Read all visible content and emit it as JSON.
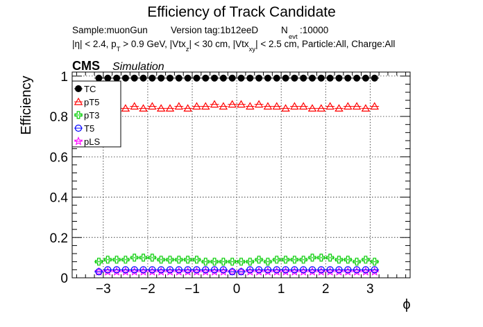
{
  "chart_data": {
    "type": "scatter",
    "title": "Efficiency of Track Candidate",
    "subtitle_line1": {
      "sample": "Sample:muonGun",
      "version": "Version tag:1b12eeD",
      "nevt_prefix": "N",
      "nevt_sub": "evt",
      "nevt_value": ":10000"
    },
    "subtitle_line2": {
      "p1": "|η| < 2.4, p",
      "s1": "T",
      "p2": " > 0.9 GeV, |Vtx",
      "s2": "z",
      "p3": "| < 30 cm, |Vtx",
      "s3": "xy",
      "p4": "| < 2.5 cm, Particle:All, Charge:All"
    },
    "cms_label": "CMS",
    "simulation_label": "Simulation",
    "xlabel": "ϕ",
    "ylabel": "Efficiency",
    "xlim": [
      -3.7,
      3.9
    ],
    "ylim": [
      0,
      1.02
    ],
    "xticks": [
      -3,
      -2,
      -1,
      0,
      1,
      2,
      3
    ],
    "xtick_labels": [
      "−3",
      "−2",
      "−1",
      "0",
      "1",
      "2",
      "3"
    ],
    "yticks": [
      0,
      0.2,
      0.4,
      0.6,
      0.8,
      1
    ],
    "ytick_labels": [
      "0",
      "0.2",
      "0.4",
      "0.6",
      "0.8",
      "1"
    ],
    "grid": true,
    "legend_position": "top-left",
    "x": [
      -3.1,
      -2.9,
      -2.7,
      -2.5,
      -2.3,
      -2.1,
      -1.9,
      -1.7,
      -1.5,
      -1.3,
      -1.1,
      -0.9,
      -0.7,
      -0.5,
      -0.3,
      -0.1,
      0.1,
      0.3,
      0.5,
      0.7,
      0.9,
      1.1,
      1.3,
      1.5,
      1.7,
      1.9,
      2.1,
      2.3,
      2.5,
      2.7,
      2.9,
      3.1
    ],
    "series": [
      {
        "name": "TC",
        "color": "#000000",
        "marker": "filled-circle",
        "values": [
          0.99,
          0.99,
          0.99,
          0.99,
          0.99,
          0.99,
          0.99,
          0.99,
          0.99,
          0.99,
          0.99,
          0.99,
          0.99,
          0.99,
          0.99,
          0.99,
          0.99,
          0.99,
          0.99,
          0.99,
          0.99,
          0.99,
          0.99,
          0.99,
          0.99,
          0.99,
          0.99,
          0.99,
          0.99,
          0.99,
          0.99,
          0.99
        ]
      },
      {
        "name": "pT5",
        "color": "#ff0000",
        "marker": "open-triangle",
        "values": [
          0.85,
          0.84,
          0.85,
          0.84,
          0.85,
          0.84,
          0.85,
          0.84,
          0.84,
          0.85,
          0.84,
          0.85,
          0.85,
          0.86,
          0.85,
          0.86,
          0.86,
          0.85,
          0.86,
          0.85,
          0.85,
          0.84,
          0.85,
          0.85,
          0.84,
          0.84,
          0.85,
          0.84,
          0.85,
          0.85,
          0.84,
          0.85
        ]
      },
      {
        "name": "pT3",
        "color": "#00cc00",
        "marker": "open-cross",
        "values": [
          0.08,
          0.09,
          0.09,
          0.09,
          0.1,
          0.1,
          0.1,
          0.09,
          0.09,
          0.09,
          0.09,
          0.09,
          0.08,
          0.08,
          0.08,
          0.08,
          0.08,
          0.08,
          0.09,
          0.08,
          0.09,
          0.09,
          0.09,
          0.09,
          0.1,
          0.1,
          0.1,
          0.09,
          0.09,
          0.08,
          0.09,
          0.08
        ]
      },
      {
        "name": "T5",
        "color": "#0000ff",
        "marker": "open-circle",
        "values": [
          0.03,
          0.04,
          0.04,
          0.04,
          0.04,
          0.04,
          0.04,
          0.04,
          0.04,
          0.04,
          0.04,
          0.04,
          0.04,
          0.04,
          0.04,
          0.03,
          0.03,
          0.04,
          0.04,
          0.04,
          0.04,
          0.04,
          0.04,
          0.04,
          0.04,
          0.04,
          0.04,
          0.04,
          0.04,
          0.04,
          0.04,
          0.04
        ]
      },
      {
        "name": "pLS",
        "color": "#ff00ff",
        "marker": "open-star",
        "values": [
          0.03,
          0.03,
          0.03,
          0.03,
          0.03,
          0.03,
          0.03,
          0.03,
          0.03,
          0.03,
          0.03,
          0.03,
          0.03,
          0.03,
          0.03,
          0.03,
          0.03,
          0.03,
          0.03,
          0.03,
          0.03,
          0.03,
          0.03,
          0.03,
          0.03,
          0.03,
          0.03,
          0.03,
          0.03,
          0.03,
          0.03,
          0.03
        ]
      }
    ]
  }
}
